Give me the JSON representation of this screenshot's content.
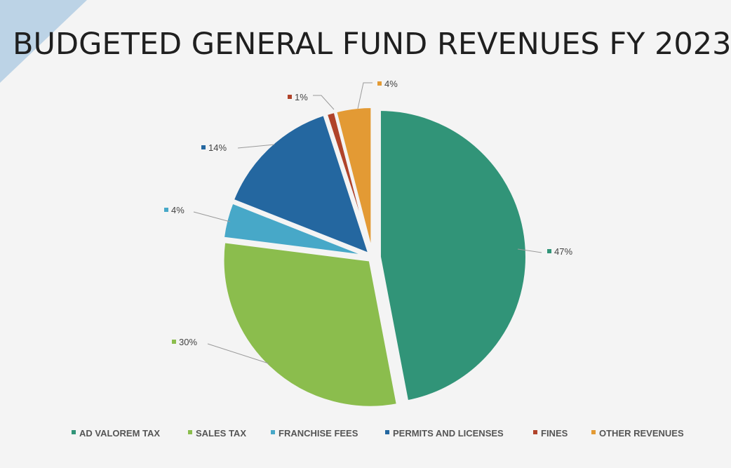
{
  "slide": {
    "title": "BUDGETED GENERAL FUND REVENUES FY 2023"
  },
  "chart_data": {
    "type": "pie",
    "title": "BUDGETED GENERAL FUND REVENUES FY 2023",
    "legend_position": "bottom",
    "categories": [
      "AD VALOREM TAX",
      "SALES TAX",
      "FRANCHISE FEES",
      "PERMITS AND LICENSES",
      "FINES",
      "OTHER REVENUES"
    ],
    "values": [
      47,
      30,
      4,
      14,
      1,
      4
    ],
    "data_labels": [
      "47%",
      "30%",
      "4%",
      "14%",
      "1%",
      "4%"
    ],
    "colors": [
      "#319478",
      "#8bbd4d",
      "#47a8c8",
      "#2467a0",
      "#b0432a",
      "#e39a34"
    ]
  }
}
